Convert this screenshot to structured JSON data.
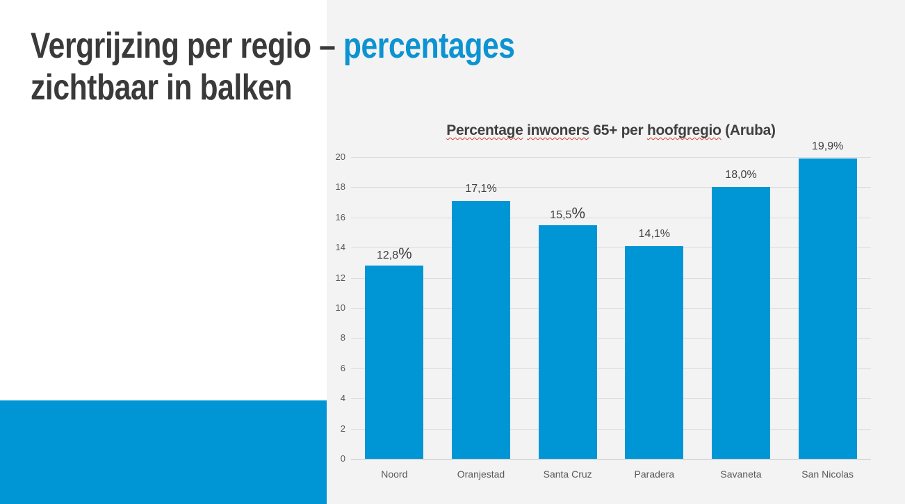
{
  "slide": {
    "title": {
      "line1_dark": "Vergrijzing per regio – ",
      "line1_accent": "percentages",
      "line2": "zichtbaar in balken"
    },
    "colors": {
      "accent_blue": "#0d93d2",
      "bar_blue": "#0096d6",
      "panel_gray": "#f3f3f3",
      "title_dark": "#3a3a3a"
    }
  },
  "chart_data": {
    "type": "bar",
    "title": "Percentage inwoners 65+ per hoofgregio (Aruba)",
    "title_segments": [
      {
        "text": "Percentage",
        "misspelled": true
      },
      {
        "text": " ",
        "misspelled": false
      },
      {
        "text": "inwoners",
        "misspelled": true
      },
      {
        "text": " 65+ per ",
        "misspelled": false
      },
      {
        "text": "hoofgregio",
        "misspelled": true
      },
      {
        "text": " (Aruba)",
        "misspelled": false
      }
    ],
    "categories": [
      "Noord",
      "Oranjestad",
      "Santa Cruz",
      "Paradera",
      "Savaneta",
      "San Nicolas"
    ],
    "values": [
      12.8,
      17.1,
      15.5,
      14.1,
      18.0,
      19.9
    ],
    "labels": [
      {
        "value_text": "12,8",
        "suffix": "%",
        "large_suffix": true
      },
      {
        "value_text": "17,1",
        "suffix": "%",
        "large_suffix": false
      },
      {
        "value_text": "15,5",
        "suffix": "%",
        "large_suffix": true
      },
      {
        "value_text": "14,1",
        "suffix": "%",
        "large_suffix": false
      },
      {
        "value_text": "18,0",
        "suffix": "%",
        "large_suffix": false
      },
      {
        "value_text": "19,9",
        "suffix": "%",
        "large_suffix": false
      }
    ],
    "ylim": [
      0,
      20
    ],
    "yticks": [
      0,
      2,
      4,
      6,
      8,
      10,
      12,
      14,
      16,
      18,
      20
    ],
    "xlabel": "",
    "ylabel": "",
    "grid": true,
    "legend": "none",
    "bar_color": "#0096d6"
  }
}
